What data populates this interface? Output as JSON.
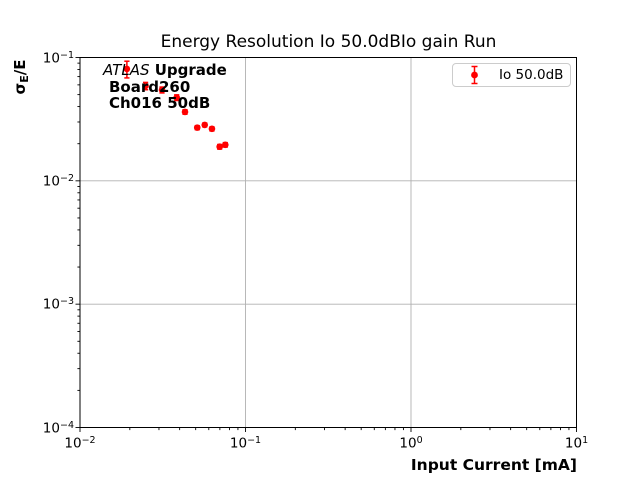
{
  "figure": {
    "title": "Energy Resolution Io 50.0dBIo gain Run",
    "background_color": "#ffffff"
  },
  "axes": {
    "xlabel": "Input Current [mA]",
    "ylabel_sigma": "σ",
    "ylabel_sub": "E",
    "ylabel_rest": "/E",
    "tick_base": "10",
    "x_tick_exponents": [
      "−2",
      "−1",
      "0",
      "1"
    ],
    "y_tick_exponents": [
      "−1",
      "−2",
      "−3",
      "−4"
    ],
    "grid_color": "#b0b0b0",
    "spine_color": "#000000"
  },
  "annotation": {
    "line1_italic": "ATLAS",
    "line1_bold": " Upgrade",
    "line2": "Board260",
    "line3": "Ch016 50dB"
  },
  "legend": {
    "label": "Io 50.0dB",
    "border_color": "#cccccc"
  },
  "chart_data": {
    "type": "scatter",
    "title": "Energy Resolution Io 50.0dBIo gain Run",
    "xlabel": "Input Current [mA]",
    "ylabel": "σ_E/E",
    "xscale": "log",
    "yscale": "log",
    "xlim": [
      0.01,
      10
    ],
    "ylim": [
      0.0001,
      0.1
    ],
    "grid": "major",
    "legend_position": "upper right",
    "series": [
      {
        "name": "Io 50.0dB",
        "color": "#ff0000",
        "marker": "o",
        "x": [
          0.0192,
          0.0249,
          0.0313,
          0.0384,
          0.0431,
          0.0511,
          0.0567,
          0.0627,
          0.0698,
          0.0755
        ],
        "y": [
          0.0808,
          0.0588,
          0.0546,
          0.0473,
          0.0362,
          0.027,
          0.0284,
          0.0264,
          0.0189,
          0.0196
        ],
        "yerr": [
          0.0125,
          0.004,
          0.003,
          0.0025,
          0.0015,
          0.001,
          0.001,
          0.001,
          0.0008,
          0.0008
        ]
      }
    ]
  }
}
